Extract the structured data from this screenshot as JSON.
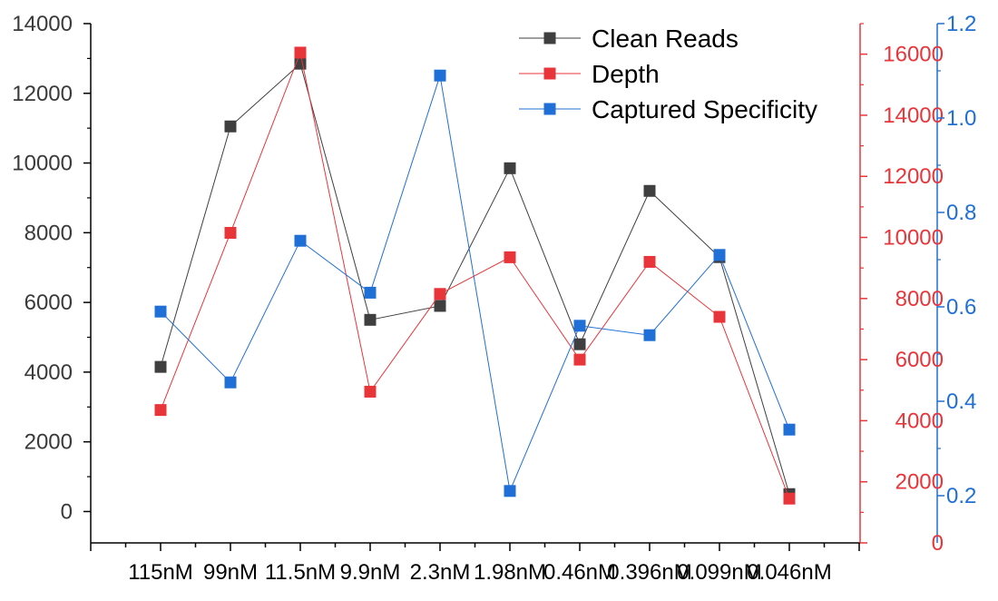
{
  "chart_data": {
    "type": "line",
    "categories": [
      "115nM",
      "99nM",
      "11.5nM",
      "9.9nM",
      "2.3nM",
      "1.98nM",
      "0.46nM",
      "0.396nM",
      "0.099nM",
      "0.046nM"
    ],
    "series": [
      {
        "name": "Clean Reads",
        "axis": "left",
        "color": "#3f3f3f",
        "values": [
          4150,
          11050,
          12850,
          5500,
          5900,
          9850,
          4800,
          9200,
          7300,
          500
        ]
      },
      {
        "name": "Depth",
        "axis": "right1",
        "color": "#e8353a",
        "values": [
          4350,
          10150,
          16050,
          4950,
          8150,
          9350,
          6000,
          9200,
          7400,
          1450
        ]
      },
      {
        "name": "Captured Specificity",
        "axis": "right2",
        "color": "#1f6fd6",
        "values": [
          0.59,
          0.44,
          0.74,
          0.63,
          1.09,
          0.21,
          0.56,
          0.54,
          0.71,
          0.34
        ]
      }
    ],
    "axes": {
      "left": {
        "range": [
          -900,
          14000
        ],
        "ticks": [
          "0",
          "2000",
          "4000",
          "6000",
          "8000",
          "10000",
          "12000",
          "14000"
        ],
        "color": "#000000"
      },
      "right1": {
        "range": [
          0,
          17000
        ],
        "ticks": [
          "0",
          "2000",
          "4000",
          "6000",
          "8000",
          "10000",
          "12000",
          "14000",
          "16000"
        ],
        "color": "#e8353a"
      },
      "right2": {
        "range": [
          0.1,
          1.2
        ],
        "ticks": [
          "0.2",
          "0.4",
          "0.6",
          "0.8",
          "1.0",
          "1.2"
        ],
        "color": "#1f6fd6"
      }
    },
    "title": "",
    "xlabel": "",
    "ylabel": "",
    "grid": false,
    "legend": "top-right"
  }
}
